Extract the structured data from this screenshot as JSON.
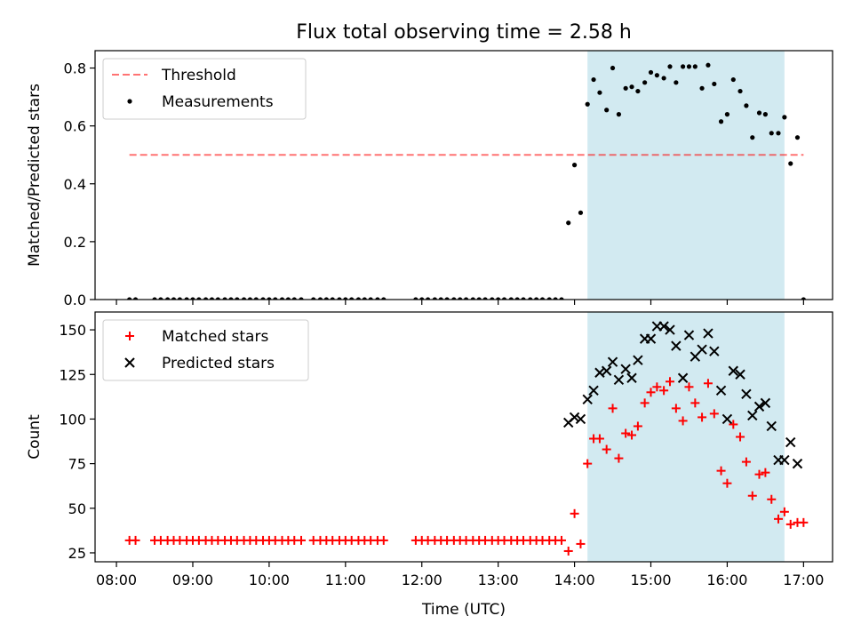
{
  "chart_data": {
    "title": "Flux total observing time = 2.58 h",
    "shared_x": {
      "label": "Time (UTC)",
      "unit": "hours UTC",
      "range": [
        7.72,
        17.38
      ],
      "ticks": [
        8,
        9,
        10,
        11,
        12,
        13,
        14,
        15,
        16,
        17
      ],
      "tick_labels": [
        "08:00",
        "09:00",
        "10:00",
        "11:00",
        "12:00",
        "13:00",
        "14:00",
        "15:00",
        "16:00",
        "17:00"
      ]
    },
    "observing_window": {
      "start": 14.17,
      "end": 16.75,
      "color": "#add8e6"
    },
    "panels": [
      {
        "type": "scatter",
        "ylabel": "Matched/Predicted stars",
        "ylim": [
          0,
          0.86
        ],
        "yticks": [
          0.0,
          0.2,
          0.4,
          0.6,
          0.8
        ],
        "ytick_labels": [
          "0.0",
          "0.2",
          "0.4",
          "0.6",
          "0.8"
        ],
        "legend_position": "top-left",
        "threshold": {
          "name": "Threshold",
          "value": 0.5,
          "x_range": [
            8.17,
            17.0
          ],
          "color": "#ff0000"
        },
        "series": [
          {
            "name": "Measurements",
            "color": "#000000",
            "points": [
              [
                8.17,
                0
              ],
              [
                8.25,
                0
              ],
              [
                8.5,
                0
              ],
              [
                8.58,
                0
              ],
              [
                8.67,
                0
              ],
              [
                8.75,
                0
              ],
              [
                8.83,
                0
              ],
              [
                8.92,
                0
              ],
              [
                9.0,
                0
              ],
              [
                9.08,
                0
              ],
              [
                9.17,
                0
              ],
              [
                9.25,
                0
              ],
              [
                9.33,
                0
              ],
              [
                9.42,
                0
              ],
              [
                9.5,
                0
              ],
              [
                9.58,
                0
              ],
              [
                9.67,
                0
              ],
              [
                9.75,
                0
              ],
              [
                9.83,
                0
              ],
              [
                9.92,
                0
              ],
              [
                10.0,
                0
              ],
              [
                10.08,
                0
              ],
              [
                10.17,
                0
              ],
              [
                10.25,
                0
              ],
              [
                10.33,
                0
              ],
              [
                10.42,
                0
              ],
              [
                10.58,
                0
              ],
              [
                10.67,
                0
              ],
              [
                10.75,
                0
              ],
              [
                10.83,
                0
              ],
              [
                10.92,
                0
              ],
              [
                11.0,
                0
              ],
              [
                11.08,
                0
              ],
              [
                11.17,
                0
              ],
              [
                11.25,
                0
              ],
              [
                11.33,
                0
              ],
              [
                11.42,
                0
              ],
              [
                11.5,
                0
              ],
              [
                11.92,
                0
              ],
              [
                12.0,
                0
              ],
              [
                12.08,
                0
              ],
              [
                12.17,
                0
              ],
              [
                12.25,
                0
              ],
              [
                12.33,
                0
              ],
              [
                12.42,
                0
              ],
              [
                12.5,
                0
              ],
              [
                12.58,
                0
              ],
              [
                12.67,
                0
              ],
              [
                12.75,
                0
              ],
              [
                12.83,
                0
              ],
              [
                12.92,
                0
              ],
              [
                13.0,
                0
              ],
              [
                13.08,
                0
              ],
              [
                13.17,
                0
              ],
              [
                13.25,
                0
              ],
              [
                13.33,
                0
              ],
              [
                13.42,
                0
              ],
              [
                13.5,
                0
              ],
              [
                13.58,
                0
              ],
              [
                13.67,
                0
              ],
              [
                13.75,
                0
              ],
              [
                13.83,
                0
              ],
              [
                13.92,
                0.265
              ],
              [
                14.0,
                0.465
              ],
              [
                14.08,
                0.3
              ],
              [
                14.17,
                0.675
              ],
              [
                14.25,
                0.76
              ],
              [
                14.33,
                0.715
              ],
              [
                14.42,
                0.655
              ],
              [
                14.5,
                0.8
              ],
              [
                14.58,
                0.64
              ],
              [
                14.67,
                0.73
              ],
              [
                14.75,
                0.735
              ],
              [
                14.83,
                0.72
              ],
              [
                14.92,
                0.75
              ],
              [
                15.0,
                0.785
              ],
              [
                15.08,
                0.775
              ],
              [
                15.17,
                0.765
              ],
              [
                15.25,
                0.805
              ],
              [
                15.33,
                0.75
              ],
              [
                15.42,
                0.805
              ],
              [
                15.5,
                0.805
              ],
              [
                15.58,
                0.805
              ],
              [
                15.67,
                0.73
              ],
              [
                15.75,
                0.81
              ],
              [
                15.83,
                0.745
              ],
              [
                15.92,
                0.615
              ],
              [
                16.0,
                0.64
              ],
              [
                16.08,
                0.76
              ],
              [
                16.17,
                0.72
              ],
              [
                16.25,
                0.67
              ],
              [
                16.33,
                0.56
              ],
              [
                16.42,
                0.645
              ],
              [
                16.5,
                0.64
              ],
              [
                16.58,
                0.575
              ],
              [
                16.67,
                0.575
              ],
              [
                16.75,
                0.63
              ],
              [
                16.83,
                0.47
              ],
              [
                16.92,
                0.56
              ],
              [
                17.0,
                0.0
              ]
            ]
          }
        ]
      },
      {
        "type": "scatter",
        "ylabel": "Count",
        "ylim": [
          20,
          160
        ],
        "yticks": [
          25,
          50,
          75,
          100,
          125,
          150
        ],
        "ytick_labels": [
          "25",
          "50",
          "75",
          "100",
          "125",
          "150"
        ],
        "legend_position": "top-left",
        "series": [
          {
            "name": "Matched stars",
            "marker": "plus",
            "color": "#ff0000",
            "points": [
              [
                8.17,
                32
              ],
              [
                8.25,
                32
              ],
              [
                8.5,
                32
              ],
              [
                8.58,
                32
              ],
              [
                8.67,
                32
              ],
              [
                8.75,
                32
              ],
              [
                8.83,
                32
              ],
              [
                8.92,
                32
              ],
              [
                9.0,
                32
              ],
              [
                9.08,
                32
              ],
              [
                9.17,
                32
              ],
              [
                9.25,
                32
              ],
              [
                9.33,
                32
              ],
              [
                9.42,
                32
              ],
              [
                9.5,
                32
              ],
              [
                9.58,
                32
              ],
              [
                9.67,
                32
              ],
              [
                9.75,
                32
              ],
              [
                9.83,
                32
              ],
              [
                9.92,
                32
              ],
              [
                10.0,
                32
              ],
              [
                10.08,
                32
              ],
              [
                10.17,
                32
              ],
              [
                10.25,
                32
              ],
              [
                10.33,
                32
              ],
              [
                10.42,
                32
              ],
              [
                10.58,
                32
              ],
              [
                10.67,
                32
              ],
              [
                10.75,
                32
              ],
              [
                10.83,
                32
              ],
              [
                10.92,
                32
              ],
              [
                11.0,
                32
              ],
              [
                11.08,
                32
              ],
              [
                11.17,
                32
              ],
              [
                11.25,
                32
              ],
              [
                11.33,
                32
              ],
              [
                11.42,
                32
              ],
              [
                11.5,
                32
              ],
              [
                11.92,
                32
              ],
              [
                12.0,
                32
              ],
              [
                12.08,
                32
              ],
              [
                12.17,
                32
              ],
              [
                12.25,
                32
              ],
              [
                12.33,
                32
              ],
              [
                12.42,
                32
              ],
              [
                12.5,
                32
              ],
              [
                12.58,
                32
              ],
              [
                12.67,
                32
              ],
              [
                12.75,
                32
              ],
              [
                12.83,
                32
              ],
              [
                12.92,
                32
              ],
              [
                13.0,
                32
              ],
              [
                13.08,
                32
              ],
              [
                13.17,
                32
              ],
              [
                13.25,
                32
              ],
              [
                13.33,
                32
              ],
              [
                13.42,
                32
              ],
              [
                13.5,
                32
              ],
              [
                13.58,
                32
              ],
              [
                13.67,
                32
              ],
              [
                13.75,
                32
              ],
              [
                13.83,
                32
              ],
              [
                13.92,
                26
              ],
              [
                14.0,
                47
              ],
              [
                14.08,
                30
              ],
              [
                14.17,
                75
              ],
              [
                14.25,
                89
              ],
              [
                14.33,
                89
              ],
              [
                14.42,
                83
              ],
              [
                14.5,
                106
              ],
              [
                14.58,
                78
              ],
              [
                14.67,
                92
              ],
              [
                14.75,
                91
              ],
              [
                14.83,
                96
              ],
              [
                14.92,
                109
              ],
              [
                15.0,
                115
              ],
              [
                15.08,
                118
              ],
              [
                15.17,
                116
              ],
              [
                15.25,
                121
              ],
              [
                15.33,
                106
              ],
              [
                15.42,
                99
              ],
              [
                15.5,
                118
              ],
              [
                15.58,
                109
              ],
              [
                15.67,
                101
              ],
              [
                15.75,
                120
              ],
              [
                15.83,
                103
              ],
              [
                15.92,
                71
              ],
              [
                16.0,
                64
              ],
              [
                16.08,
                97
              ],
              [
                16.17,
                90
              ],
              [
                16.25,
                76
              ],
              [
                16.33,
                57
              ],
              [
                16.42,
                69
              ],
              [
                16.5,
                70
              ],
              [
                16.58,
                55
              ],
              [
                16.67,
                44
              ],
              [
                16.75,
                48
              ],
              [
                16.83,
                41
              ],
              [
                16.92,
                42
              ],
              [
                17.0,
                42
              ]
            ]
          },
          {
            "name": "Predicted stars",
            "marker": "x",
            "color": "#000000",
            "points": [
              [
                13.92,
                98
              ],
              [
                14.0,
                101
              ],
              [
                14.08,
                100
              ],
              [
                14.17,
                111
              ],
              [
                14.25,
                116
              ],
              [
                14.33,
                126
              ],
              [
                14.42,
                127
              ],
              [
                14.5,
                132
              ],
              [
                14.58,
                122
              ],
              [
                14.67,
                128
              ],
              [
                14.75,
                123
              ],
              [
                14.83,
                133
              ],
              [
                14.92,
                145
              ],
              [
                15.0,
                145
              ],
              [
                15.08,
                152
              ],
              [
                15.17,
                152
              ],
              [
                15.25,
                150
              ],
              [
                15.33,
                141
              ],
              [
                15.42,
                123
              ],
              [
                15.5,
                147
              ],
              [
                15.58,
                135
              ],
              [
                15.67,
                139
              ],
              [
                15.75,
                148
              ],
              [
                15.83,
                138
              ],
              [
                15.92,
                116
              ],
              [
                16.0,
                100
              ],
              [
                16.08,
                127
              ],
              [
                16.17,
                125
              ],
              [
                16.25,
                114
              ],
              [
                16.33,
                102
              ],
              [
                16.42,
                107
              ],
              [
                16.5,
                109
              ],
              [
                16.58,
                96
              ],
              [
                16.67,
                77
              ],
              [
                16.75,
                77
              ],
              [
                16.83,
                87
              ],
              [
                16.92,
                75
              ]
            ]
          }
        ]
      }
    ]
  }
}
